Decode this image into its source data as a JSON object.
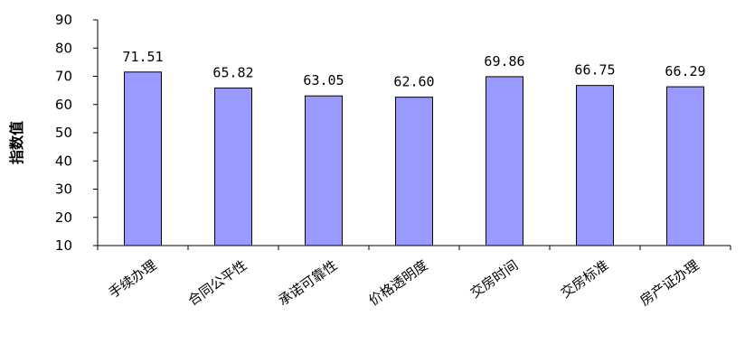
{
  "chart_data": {
    "type": "bar",
    "title": "",
    "xlabel": "",
    "ylabel": "指数值",
    "ylim": [
      10,
      90
    ],
    "yticks": [
      10,
      20,
      30,
      40,
      50,
      60,
      70,
      80,
      90
    ],
    "categories": [
      "手续办理",
      "合同公平性",
      "承诺可靠性",
      "价格透明度",
      "交房时间",
      "交房标准",
      "房产证办理"
    ],
    "values": [
      71.51,
      65.82,
      63.05,
      62.6,
      69.86,
      66.75,
      66.29
    ],
    "data_labels": [
      "71.51",
      "65.82",
      "63.05",
      "62.60",
      "69.86",
      "66.75",
      "66.29"
    ],
    "grid": false,
    "legend": "none",
    "colors": {
      "bar_fill": "#9999ff",
      "bar_stroke": "#000000",
      "axis": "#000000"
    }
  }
}
